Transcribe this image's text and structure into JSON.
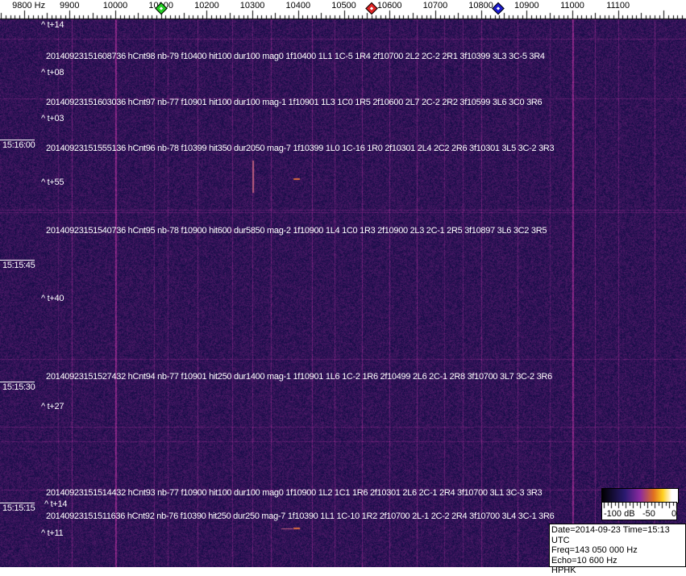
{
  "axis": {
    "unit_label": "9800 Hz",
    "ticks": [
      {
        "freq": 9800,
        "label": "9800 Hz"
      },
      {
        "freq": 9900,
        "label": "9900"
      },
      {
        "freq": 10000,
        "label": "10000"
      },
      {
        "freq": 10100,
        "label": "10100"
      },
      {
        "freq": 10200,
        "label": "10200"
      },
      {
        "freq": 10300,
        "label": "10300"
      },
      {
        "freq": 10400,
        "label": "10400"
      },
      {
        "freq": 10500,
        "label": "10500"
      },
      {
        "freq": 10600,
        "label": "10600"
      },
      {
        "freq": 10700,
        "label": "10700"
      },
      {
        "freq": 10800,
        "label": "10800"
      },
      {
        "freq": 10900,
        "label": "10900"
      },
      {
        "freq": 11000,
        "label": "11000"
      },
      {
        "freq": 11100,
        "label": "11100"
      }
    ],
    "markers": [
      {
        "name": "green-marker",
        "freq": 10100,
        "color": "#22cc22"
      },
      {
        "name": "red-marker",
        "freq": 10560,
        "color": "#dd2222"
      },
      {
        "name": "blue-marker",
        "freq": 10838,
        "color": "#1a1acc"
      }
    ]
  },
  "waterfall": {
    "background_color": "#1e1670",
    "strong_lines_hz": [
      10000,
      11000
    ],
    "time_labels": [
      "15:16:00",
      "15:15:45",
      "15:15:30",
      "15:15:15"
    ],
    "offset_labels": [
      "^ t+14",
      "^ t+08",
      "^ t+03",
      "^ t+55",
      "^ t+40",
      "^ t+27",
      "^ t+14",
      "^ t+11"
    ],
    "detections": [
      "20140923151608736 hCnt98 nb-79 f10400 hit100 dur100 mag0 1f10400 1L1 1C-5 1R4 2f10700 2L2 2C-2 2R1 3f10399 3L3 3C-5 3R4",
      "20140923151603036 hCnt97 nb-77 f10901 hit100 dur100 mag-1 1f10901 1L3 1C0 1R5 2f10600 2L7 2C-2 2R2 3f10599 3L6 3C0 3R6",
      "20140923151555136 hCnt96 nb-78 f10399 hit350 dur2050 mag-7 1f10399 1L0 1C-16 1R0 2f10301 2L4 2C2 2R6 3f10301 3L5 3C-2 3R3",
      "20140923151540736 hCnt95 nb-78 f10900 hit600 dur5850 mag-2 1f10900 1L4 1C0 1R3 2f10900 2L3 2C-1 2R5 3f10897 3L6 3C2 3R5",
      "20140923151527432 hCnt94 nb-77 f10901 hit250 dur1400 mag-1 1f10901 1L6 1C-2 1R6 2f10499 2L6 2C-1 2R8 3f10700 3L7 3C-2 3R6",
      "20140923151514432 hCnt93 nb-77 f10900 hit100 dur100 mag0 1f10900 1L2 1C1 1R6 2f10301 2L6 2C-1 2R4 3f10700 3L1 3C-3 3R3",
      "20140923151511636 hCnt92 nb-76 f10390 hit250 dur250 mag-7 1f10390 1L1 1C-10 1R2 2f10700 2L-1 2C-2 2R4 3f10700 3L4 3C-1 3R6"
    ]
  },
  "colorbar": {
    "labels": [
      "-100 dB",
      "-50",
      "0"
    ],
    "colors": [
      "#000000",
      "#2a1a70",
      "#8a2aa0",
      "#e07020",
      "#ffd020",
      "#ffffff"
    ]
  },
  "info": {
    "date_line": "Date=2014-09-23 Time=15:13 UTC",
    "freq_line": "Freq=143 050 000 Hz",
    "echo_line": "Echo=10 600 Hz",
    "station": "HPHK"
  }
}
